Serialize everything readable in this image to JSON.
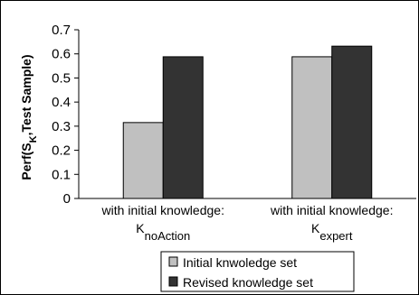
{
  "chart_data": {
    "type": "bar",
    "categories": [
      {
        "line1": "with initial knowledge:",
        "symbol": "K",
        "subscript": "noAction"
      },
      {
        "line1": "with initial knowledge:",
        "symbol": "K",
        "subscript": "expert"
      }
    ],
    "series": [
      {
        "name": "Initial knwoledge set",
        "color": "#c0c0c0",
        "values": [
          0.315,
          0.588
        ]
      },
      {
        "name": "Revised knowledge set",
        "color": "#333333",
        "values": [
          0.588,
          0.632
        ]
      }
    ],
    "ylabel": {
      "prefix": "Perf(S",
      "subscript": "K",
      "suffix": ",Test Sample)"
    },
    "ylim": [
      0,
      0.7
    ],
    "yticks": [
      "0",
      "0.1",
      "0.2",
      "0.3",
      "0.4",
      "0.5",
      "0.6",
      "0.7"
    ],
    "grid": false,
    "legend_position": "bottom"
  }
}
